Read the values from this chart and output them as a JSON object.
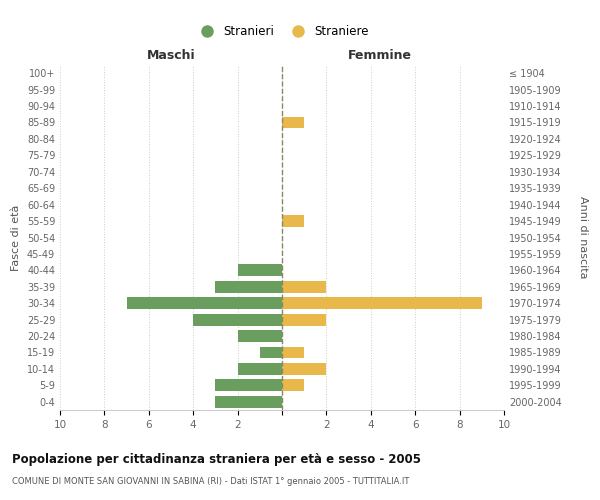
{
  "age_groups": [
    "100+",
    "95-99",
    "90-94",
    "85-89",
    "80-84",
    "75-79",
    "70-74",
    "65-69",
    "60-64",
    "55-59",
    "50-54",
    "45-49",
    "40-44",
    "35-39",
    "30-34",
    "25-29",
    "20-24",
    "15-19",
    "10-14",
    "5-9",
    "0-4"
  ],
  "birth_years": [
    "≤ 1904",
    "1905-1909",
    "1910-1914",
    "1915-1919",
    "1920-1924",
    "1925-1929",
    "1930-1934",
    "1935-1939",
    "1940-1944",
    "1945-1949",
    "1950-1954",
    "1955-1959",
    "1960-1964",
    "1965-1969",
    "1970-1974",
    "1975-1979",
    "1980-1984",
    "1985-1989",
    "1990-1994",
    "1995-1999",
    "2000-2004"
  ],
  "males": [
    0,
    0,
    0,
    0,
    0,
    0,
    0,
    0,
    0,
    0,
    0,
    0,
    2,
    3,
    7,
    4,
    2,
    1,
    2,
    3,
    3
  ],
  "females": [
    0,
    0,
    0,
    1,
    0,
    0,
    0,
    0,
    0,
    1,
    0,
    0,
    0,
    2,
    9,
    2,
    0,
    1,
    2,
    1,
    0
  ],
  "male_color": "#6a9e5e",
  "female_color": "#e8b84b",
  "center_line_color": "#888866",
  "grid_color": "#cccccc",
  "background_color": "#ffffff",
  "title": "Popolazione per cittadinanza straniera per età e sesso - 2005",
  "subtitle": "COMUNE DI MONTE SAN GIOVANNI IN SABINA (RI) - Dati ISTAT 1° gennaio 2005 - TUTTITALIA.IT",
  "xlabel_left": "Maschi",
  "xlabel_right": "Femmine",
  "ylabel_left": "Fasce di età",
  "ylabel_right": "Anni di nascita",
  "legend_male": "Stranieri",
  "legend_female": "Straniere",
  "xlim": 10
}
